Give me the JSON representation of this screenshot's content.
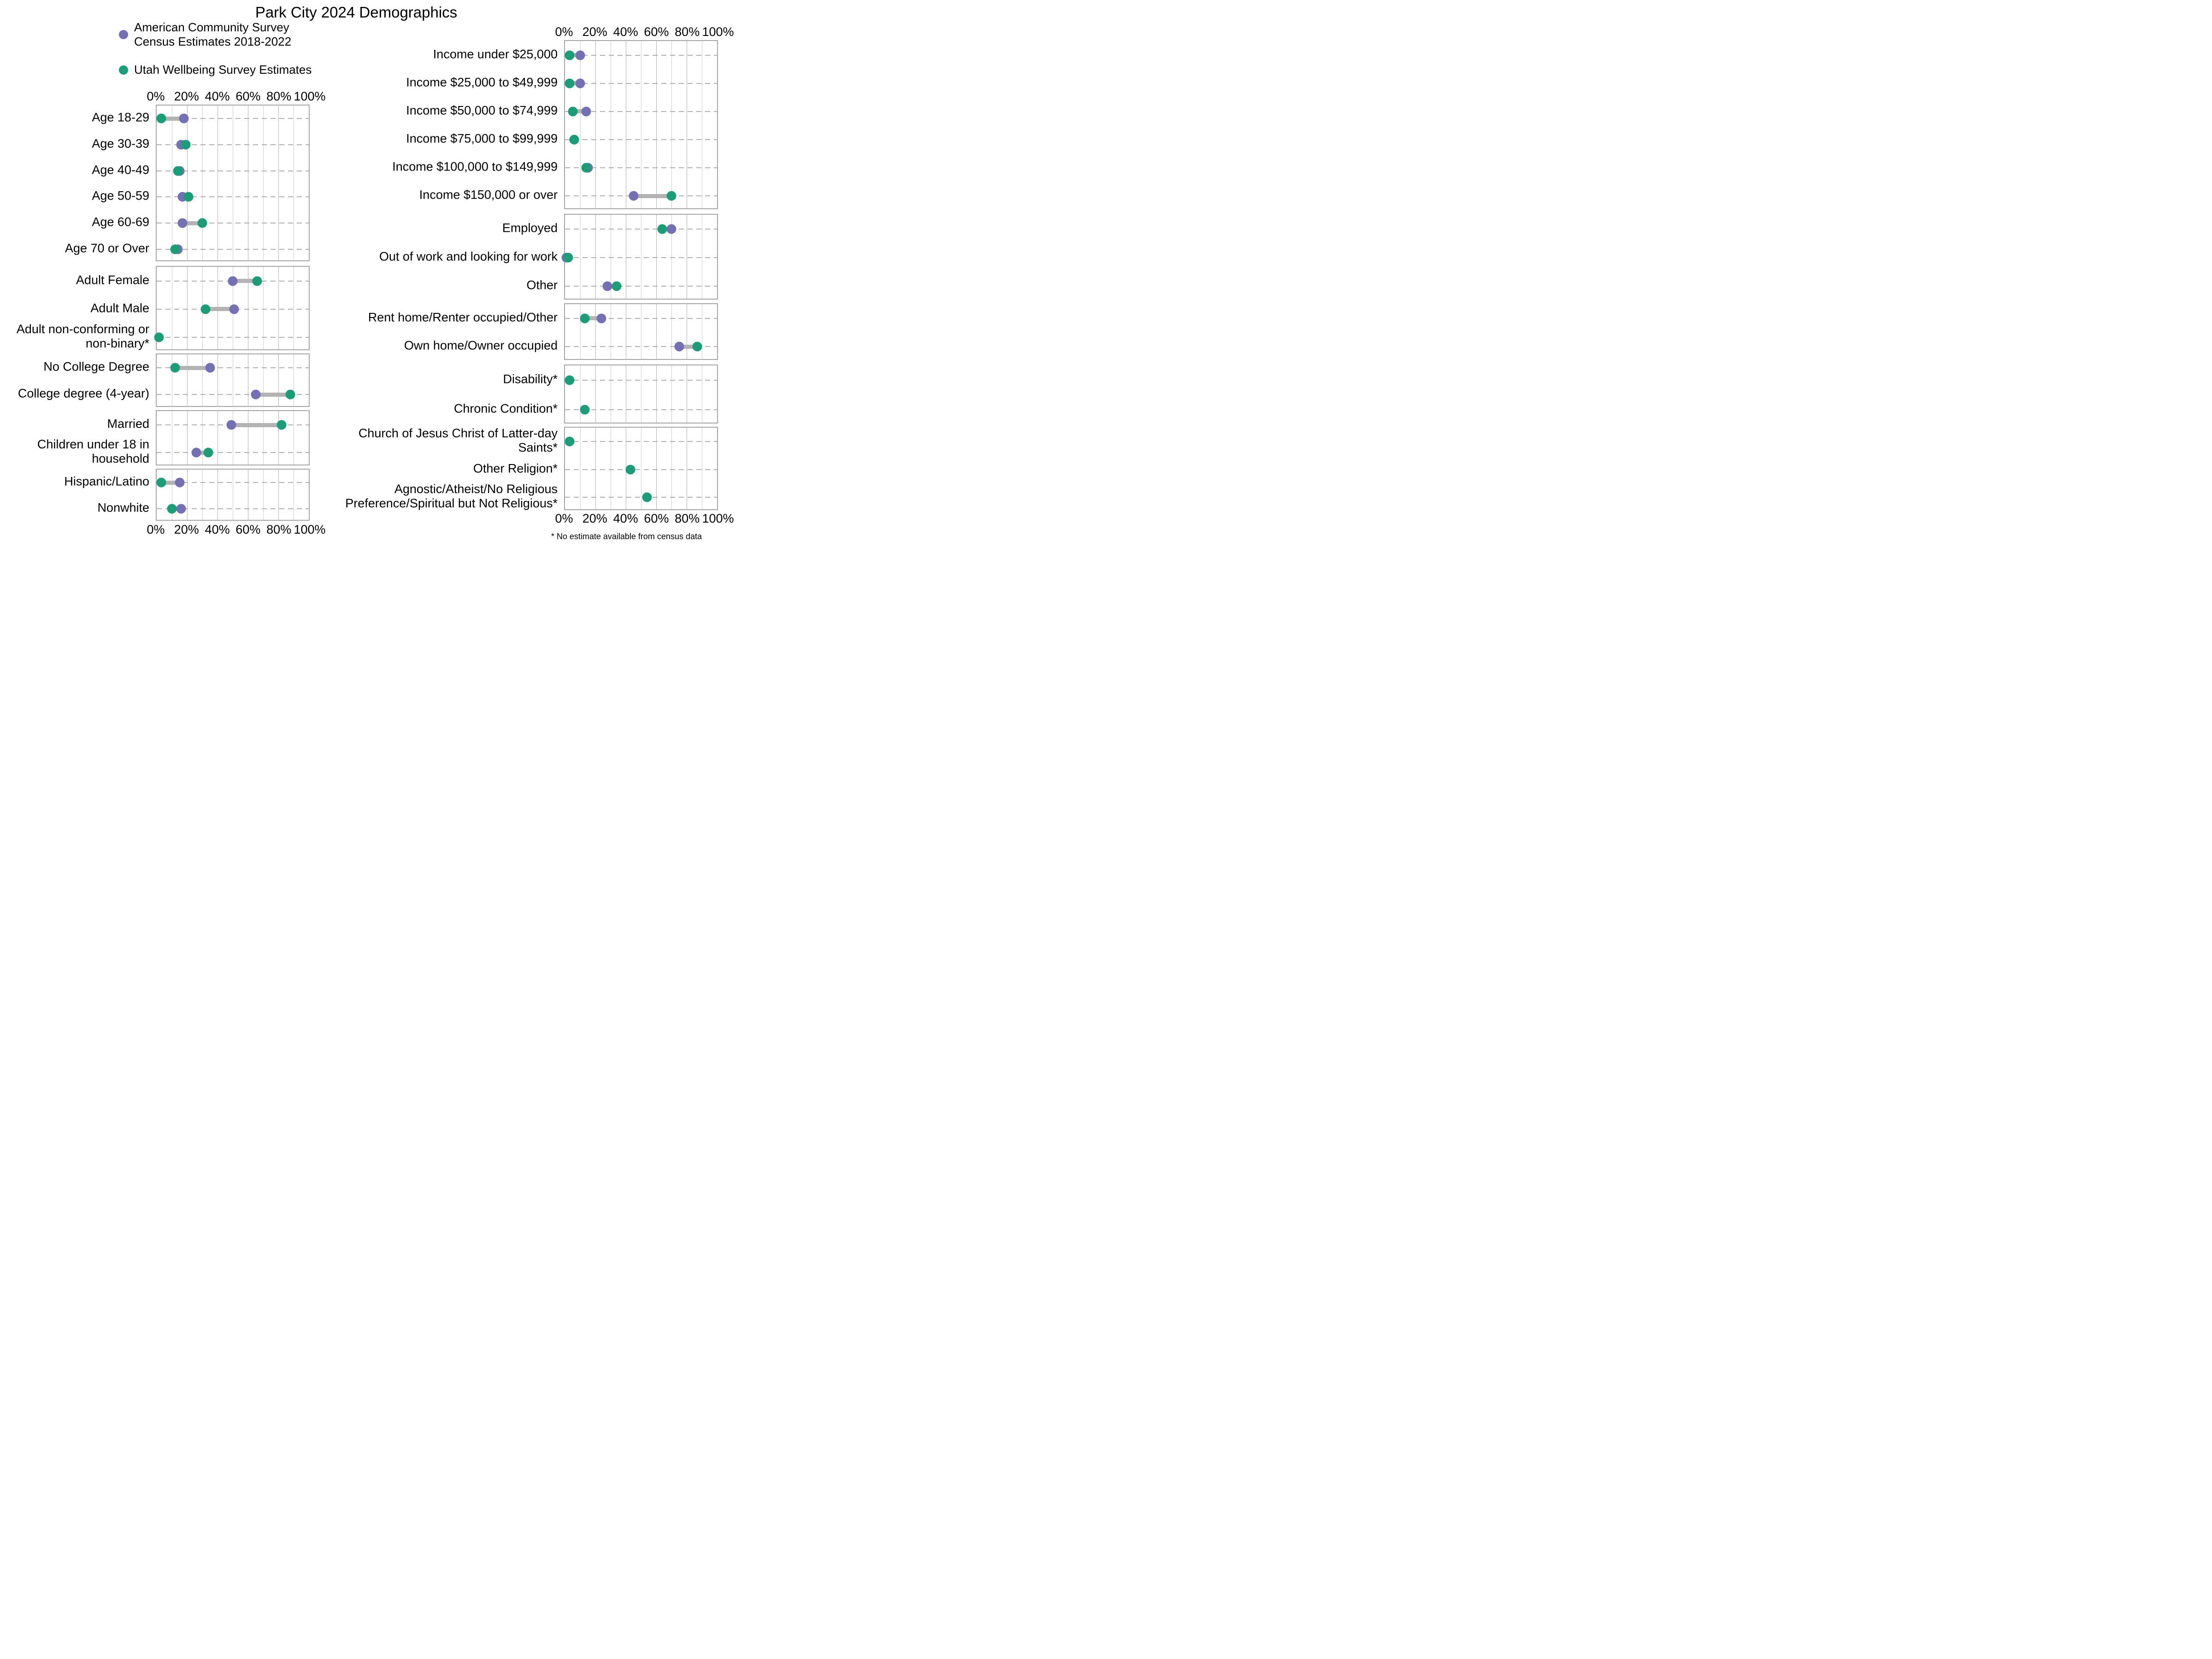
{
  "title": "Park City 2024 Demographics",
  "legend": {
    "items": [
      {
        "series": "acs",
        "label": "American Community Survey\nCensus Estimates 2018-2022",
        "color": "#7570b3"
      },
      {
        "series": "uws",
        "label": "Utah Wellbeing Survey Estimates",
        "color": "#1b9e77"
      }
    ]
  },
  "footnote": "* No estimate available from census data",
  "colors": {
    "acs": "#7570b3",
    "uws": "#1b9e77",
    "connector": "#b3b3b3"
  },
  "axis": {
    "tick_labels": [
      "0%",
      "20%",
      "40%",
      "60%",
      "80%",
      "100%"
    ],
    "min": 0,
    "max": 100,
    "unit": "percent",
    "minor_grid_step": 10
  },
  "chart_data": {
    "type": "dumbbell",
    "title": "Park City 2024 Demographics",
    "series": [
      {
        "key": "acs",
        "name": "American Community Survey Census Estimates 2018-2022",
        "color": "#7570b3"
      },
      {
        "key": "uws",
        "name": "Utah Wellbeing Survey Estimates",
        "color": "#1b9e77"
      }
    ],
    "xlim": [
      0,
      100
    ],
    "columns": [
      {
        "panels": [
          {
            "name": "age",
            "rows": [
              {
                "label": "Age 18-29",
                "acs": 18,
                "uws": 3
              },
              {
                "label": "Age 30-39",
                "acs": 16,
                "uws": 19
              },
              {
                "label": "Age 40-49",
                "acs": 15,
                "uws": 14
              },
              {
                "label": "Age 50-59",
                "acs": 17,
                "uws": 21
              },
              {
                "label": "Age 60-69",
                "acs": 17,
                "uws": 30
              },
              {
                "label": "Age 70 or Over",
                "acs": 14,
                "uws": 12
              }
            ]
          },
          {
            "name": "gender",
            "rows": [
              {
                "label": "Adult Female",
                "acs": 50,
                "uws": 66
              },
              {
                "label": "Adult Male",
                "acs": 51,
                "uws": 32
              },
              {
                "label": "Adult non-conforming or\nnon-binary*",
                "acs": null,
                "uws": 1.5
              }
            ]
          },
          {
            "name": "education",
            "rows": [
              {
                "label": "No College Degree",
                "acs": 35,
                "uws": 12
              },
              {
                "label": "College degree (4-year)",
                "acs": 65,
                "uws": 88
              }
            ]
          },
          {
            "name": "family",
            "rows": [
              {
                "label": "Married",
                "acs": 49,
                "uws": 82
              },
              {
                "label": "Children under 18 in\nhousehold",
                "acs": 26,
                "uws": 34
              }
            ]
          },
          {
            "name": "race-ethnicity",
            "rows": [
              {
                "label": "Hispanic/Latino",
                "acs": 15,
                "uws": 3
              },
              {
                "label": "Nonwhite",
                "acs": 16,
                "uws": 10
              }
            ]
          }
        ]
      },
      {
        "panels": [
          {
            "name": "income",
            "rows": [
              {
                "label": "Income under $25,000",
                "acs": 10,
                "uws": 3
              },
              {
                "label": "Income $25,000 to $49,999",
                "acs": 10,
                "uws": 3
              },
              {
                "label": "Income $50,000 to $74,999",
                "acs": 14,
                "uws": 5
              },
              {
                "label": "Income $75,000 to $99,999",
                "acs": 6,
                "uws": 6
              },
              {
                "label": "Income $100,000 to $149,999",
                "acs": 15,
                "uws": 14
              },
              {
                "label": "Income $150,000 or over",
                "acs": 45,
                "uws": 70
              }
            ]
          },
          {
            "name": "employment",
            "rows": [
              {
                "label": "Employed",
                "acs": 70,
                "uws": 64
              },
              {
                "label": "Out of work and looking for work",
                "acs": 1,
                "uws": 2
              },
              {
                "label": "Other",
                "acs": 28,
                "uws": 34
              }
            ]
          },
          {
            "name": "housing",
            "rows": [
              {
                "label": "Rent home/Renter occupied/Other",
                "acs": 24,
                "uws": 13
              },
              {
                "label": "Own home/Owner occupied",
                "acs": 75,
                "uws": 87
              }
            ]
          },
          {
            "name": "health",
            "rows": [
              {
                "label": "Disability*",
                "acs": null,
                "uws": 3
              },
              {
                "label": "Chronic Condition*",
                "acs": null,
                "uws": 13
              }
            ]
          },
          {
            "name": "religion",
            "rows": [
              {
                "label": "Church of Jesus Christ of Latter-day\nSaints*",
                "acs": null,
                "uws": 3
              },
              {
                "label": "Other Religion*",
                "acs": null,
                "uws": 43
              },
              {
                "label": "Agnostic/Atheist/No Religious\nPreference/Spiritual but Not Religious*",
                "acs": null,
                "uws": 54
              }
            ]
          }
        ]
      }
    ]
  }
}
